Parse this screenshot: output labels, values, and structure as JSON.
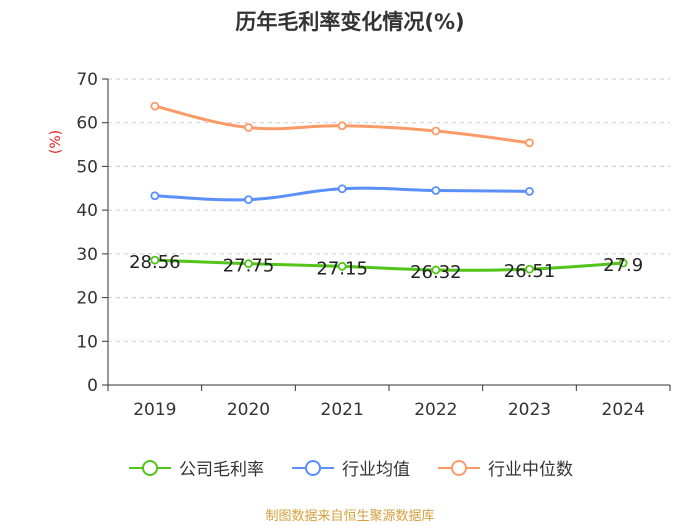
{
  "chart_data": {
    "type": "line",
    "title": "历年毛利率变化情况(%)",
    "ylabel": "(%)",
    "xlabel": "",
    "categories": [
      "2019",
      "2020",
      "2021",
      "2022",
      "2023",
      "2024"
    ],
    "ylim": [
      0,
      70
    ],
    "yticks": [
      "0",
      "10",
      "20",
      "30",
      "40",
      "50",
      "60",
      "70"
    ],
    "series": [
      {
        "name": "公司毛利率",
        "color": "#52c41a",
        "values": [
          28.56,
          27.75,
          27.15,
          26.32,
          26.51,
          27.9
        ],
        "labels": [
          "28.56",
          "27.75",
          "27.15",
          "26.32",
          "26.51",
          "27.9"
        ]
      },
      {
        "name": "行业均值",
        "color": "#5b8ff9",
        "values": [
          43.3,
          42.4,
          44.9,
          44.5,
          44.3,
          null
        ]
      },
      {
        "name": "行业中位数",
        "color": "#fb9a66",
        "values": [
          63.8,
          58.9,
          59.3,
          58.1,
          55.4,
          null
        ]
      }
    ],
    "legend_position": "bottom"
  },
  "colors": {
    "axis_label": "#e02020",
    "source": "#d4a03c",
    "text": "#333333"
  },
  "source_text": "制图数据来自恒生聚源数据库"
}
